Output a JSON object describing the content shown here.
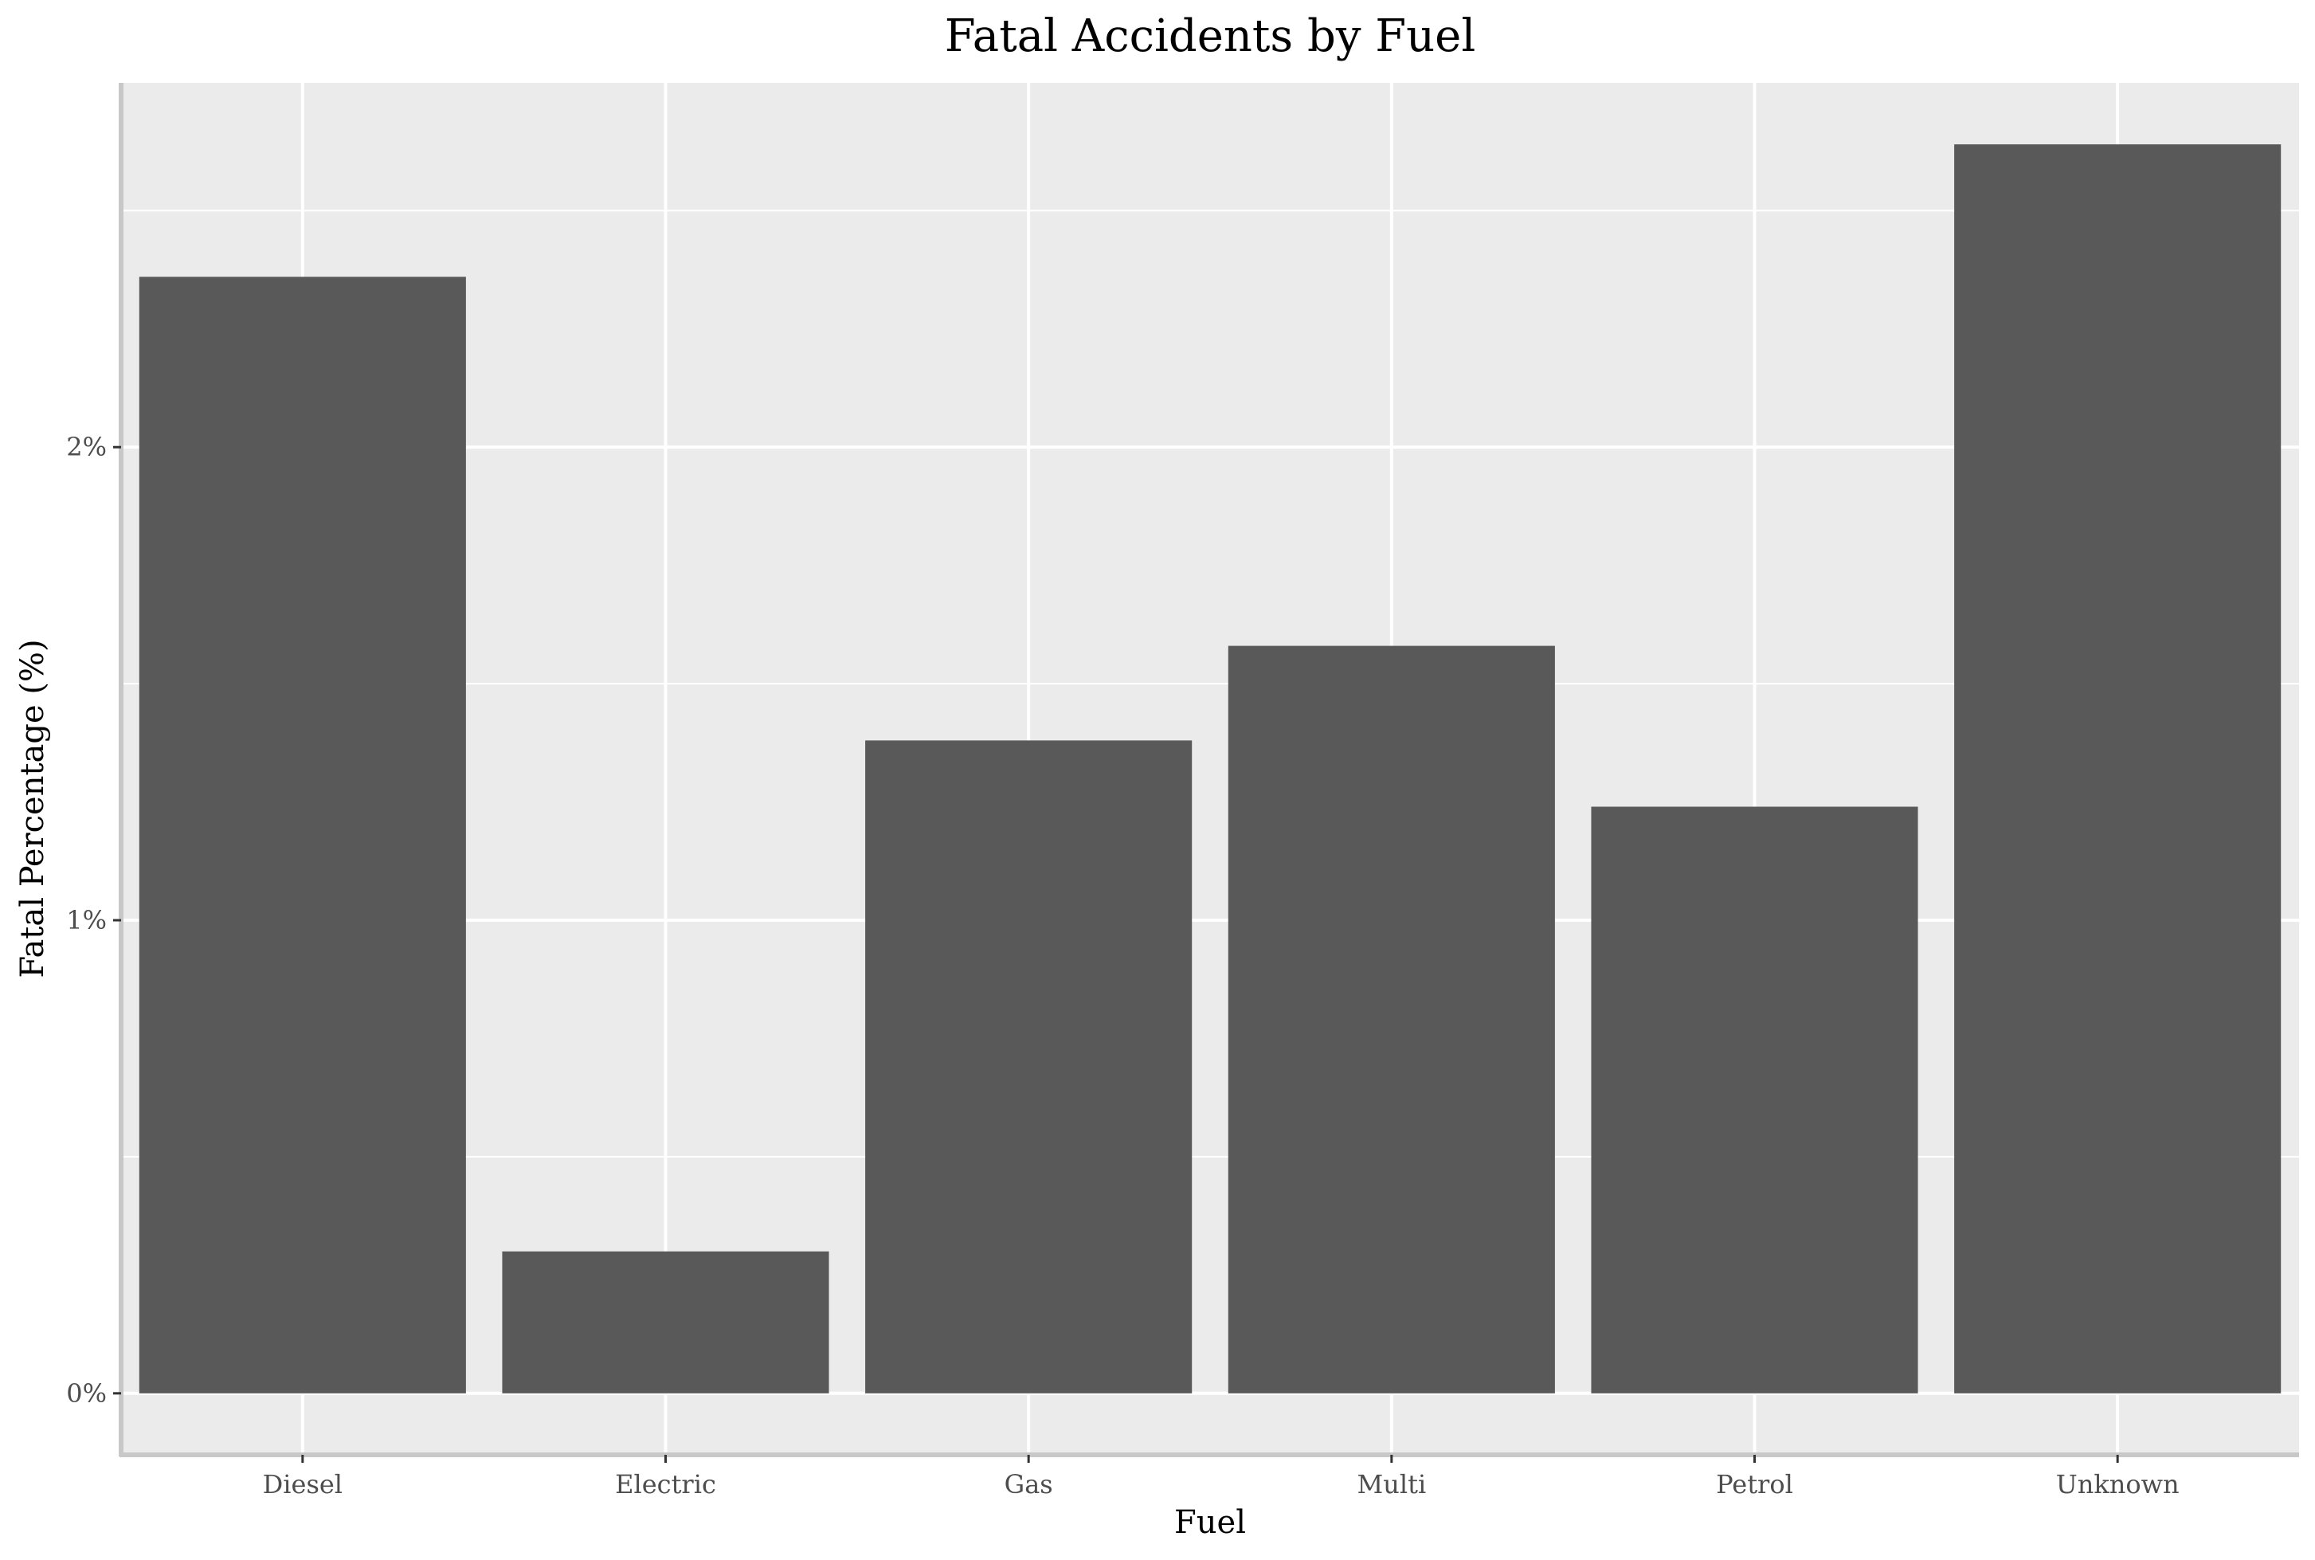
{
  "chart_data": {
    "type": "bar",
    "title": "Fatal Accidents by Fuel",
    "xlabel": "Fuel",
    "ylabel": "Fatal Percentage (%)",
    "categories": [
      "Diesel",
      "Electric",
      "Gas",
      "Multi",
      "Petrol",
      "Unknown"
    ],
    "values": [
      2.36,
      0.3,
      1.38,
      1.58,
      1.24,
      2.64
    ],
    "ylim": [
      -0.13,
      2.77
    ],
    "yticks": [
      0,
      1,
      2
    ],
    "ytick_labels": [
      "0%",
      "1%",
      "2%"
    ],
    "y_minor_ticks": [
      0.5,
      1.5,
      2.5
    ],
    "grid": true,
    "legend": "none",
    "colors": {
      "bar": "#595959",
      "panel_background": "#ebebeb",
      "grid_line": "#ffffff",
      "axis_line": "#c8c8c8",
      "tick_label": "#4d4d4d",
      "tick_mark": "#333333",
      "text": "#000000"
    }
  }
}
